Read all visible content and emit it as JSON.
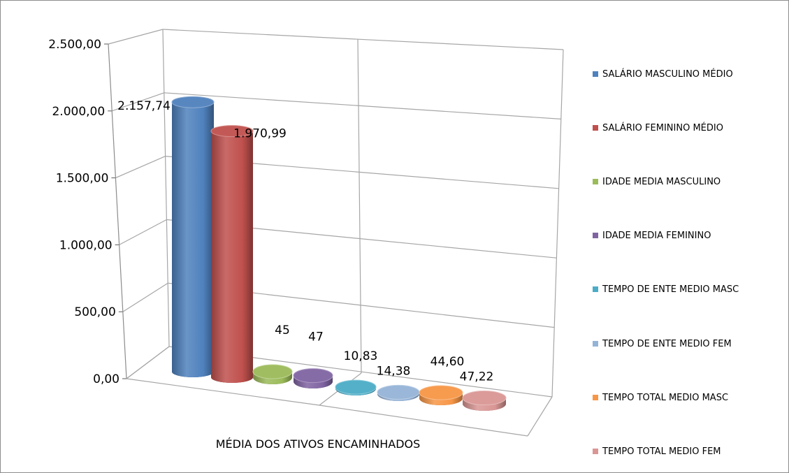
{
  "chart_data": {
    "type": "bar",
    "style": "3d-cylinder",
    "xlabel": "MÉDIA DOS ATIVOS ENCAMINHADOS",
    "ylim": [
      0,
      2500
    ],
    "yticks": [
      "0,00",
      "500,00",
      "1.000,00",
      "1.500,00",
      "2.000,00",
      "2.500,00"
    ],
    "grid": true,
    "legend_position": "right",
    "series": [
      {
        "name": "SALÁRIO MASCULINO MÉDIO",
        "value": 2157.74,
        "label": "2.157,74",
        "color": "#4f81bd"
      },
      {
        "name": "SALÁRIO FEMININO MÉDIO",
        "value": 1970.99,
        "label": "1.970,99",
        "color": "#c0504d"
      },
      {
        "name": "IDADE MEDIA MASCULINO",
        "value": 45,
        "label": "45",
        "color": "#9bbb59"
      },
      {
        "name": "IDADE MEDIA FEMININO",
        "value": 47,
        "label": "47",
        "color": "#8064a2"
      },
      {
        "name": "TEMPO DE ENTE MEDIO MASC",
        "value": 10.83,
        "label": "10,83",
        "color": "#4bacc6"
      },
      {
        "name": "TEMPO DE ENTE MEDIO FEM",
        "value": 14.38,
        "label": "14,38",
        "color": "#95b3d7"
      },
      {
        "name": "TEMPO TOTAL MEDIO MASC",
        "value": 44.6,
        "label": "44,60",
        "color": "#f79646"
      },
      {
        "name": "TEMPO TOTAL MEDIO FEM",
        "value": 47.22,
        "label": "47,22",
        "color": "#d99694"
      }
    ]
  }
}
